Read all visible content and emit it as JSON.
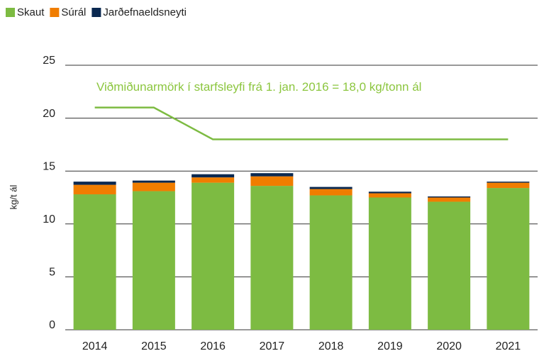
{
  "chart_data": {
    "type": "bar",
    "stacked": true,
    "y_axis_label": "kg/t ál",
    "categories": [
      "2014",
      "2015",
      "2016",
      "2017",
      "2018",
      "2019",
      "2020",
      "2021"
    ],
    "series": [
      {
        "name": "Skaut",
        "color": "#7dbb42",
        "values": [
          12.8,
          13.1,
          13.9,
          13.6,
          12.7,
          12.5,
          12.1,
          13.4
        ]
      },
      {
        "name": "Súrál",
        "color": "#f07d00",
        "values": [
          0.9,
          0.8,
          0.5,
          0.9,
          0.6,
          0.4,
          0.4,
          0.5
        ]
      },
      {
        "name": "Jarðefnaeldsneyti",
        "color": "#0a2850",
        "values": [
          0.3,
          0.2,
          0.3,
          0.3,
          0.2,
          0.15,
          0.1,
          0.1
        ]
      }
    ],
    "limit_line": {
      "type": "line",
      "name": "Viðmiðunarmörk í starfsleyfi frá 1. jan. 2016 = 18,0 kg/tonn ál",
      "color": "#7dbb42",
      "values": [
        21,
        21,
        18,
        18,
        18,
        18,
        18,
        18
      ]
    },
    "ylim": [
      0,
      25
    ],
    "yticks": [
      0,
      5,
      10,
      15,
      20,
      25
    ],
    "grid": true,
    "legend": "top-left"
  }
}
